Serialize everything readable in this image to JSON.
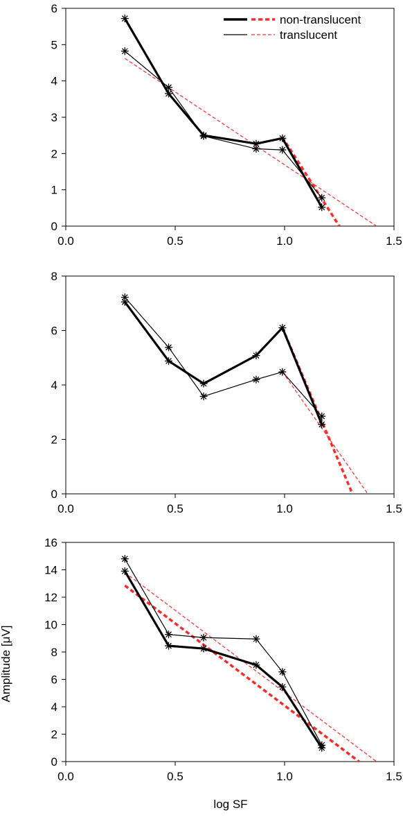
{
  "legend": {
    "position": "top-right",
    "entries": [
      {
        "label": "non-translucent",
        "black_style": "thick-solid",
        "red_style": "thick-dashed"
      },
      {
        "label": "translucent",
        "black_style": "thin-solid",
        "red_style": "thin-dashed"
      }
    ]
  },
  "colors": {
    "data_line": "#000000",
    "fit_line": "#ff2a2a",
    "axis": "#000000"
  },
  "chart_data": [
    {
      "type": "line",
      "title": "",
      "xlabel": "",
      "ylabel": "",
      "xlim": [
        0.0,
        1.5
      ],
      "ylim": [
        0,
        6
      ],
      "x_ticks": [
        "0.0",
        "0.5",
        "1.0",
        "1.5"
      ],
      "y_ticks": [
        "0",
        "1",
        "2",
        "3",
        "4",
        "5",
        "6"
      ],
      "grid": false,
      "x": [
        0.27,
        0.47,
        0.63,
        0.87,
        0.99,
        1.17
      ],
      "series": [
        {
          "name": "non-translucent",
          "values": [
            5.72,
            3.65,
            2.5,
            2.27,
            2.42,
            0.52
          ]
        },
        {
          "name": "translucent",
          "values": [
            4.82,
            3.82,
            2.48,
            2.13,
            2.1,
            0.78
          ]
        }
      ],
      "fits": [
        {
          "name": "non-translucent",
          "x": [
            0.99,
            1.25
          ],
          "y": [
            2.45,
            0.0
          ]
        },
        {
          "name": "translucent",
          "x": [
            0.27,
            1.42
          ],
          "y": [
            4.62,
            0.0
          ]
        }
      ]
    },
    {
      "type": "line",
      "title": "",
      "xlabel": "",
      "ylabel": "",
      "xlim": [
        0.0,
        1.5
      ],
      "ylim": [
        0,
        8
      ],
      "x_ticks": [
        "0.0",
        "0.5",
        "1.0",
        "1.5"
      ],
      "y_ticks": [
        "0",
        "2",
        "4",
        "6",
        "8"
      ],
      "grid": false,
      "x": [
        0.27,
        0.47,
        0.63,
        0.87,
        0.99,
        1.17
      ],
      "series": [
        {
          "name": "non-translucent",
          "values": [
            7.05,
            4.88,
            4.05,
            5.08,
            6.1,
            2.55
          ]
        },
        {
          "name": "translucent",
          "values": [
            7.22,
            5.38,
            3.58,
            4.2,
            4.48,
            2.85
          ]
        }
      ],
      "fits": [
        {
          "name": "non-translucent",
          "x": [
            0.99,
            1.31
          ],
          "y": [
            6.1,
            0.0
          ]
        },
        {
          "name": "translucent",
          "x": [
            0.99,
            1.38
          ],
          "y": [
            4.48,
            0.0
          ]
        }
      ]
    },
    {
      "type": "line",
      "title": "",
      "xlabel": "log SF",
      "ylabel": "Amplitude [μV]",
      "xlim": [
        0.0,
        1.5
      ],
      "ylim": [
        0,
        16
      ],
      "x_ticks": [
        "0.0",
        "0.5",
        "1.0",
        "1.5"
      ],
      "y_ticks": [
        "0",
        "2",
        "4",
        "6",
        "8",
        "10",
        "12",
        "14",
        "16"
      ],
      "grid": false,
      "x": [
        0.27,
        0.47,
        0.63,
        0.87,
        0.99,
        1.17
      ],
      "series": [
        {
          "name": "non-translucent",
          "values": [
            13.9,
            8.45,
            8.25,
            7.05,
            5.45,
            1.0
          ]
        },
        {
          "name": "translucent",
          "values": [
            14.8,
            9.28,
            9.05,
            8.95,
            6.55,
            1.2
          ]
        }
      ],
      "fits": [
        {
          "name": "non-translucent",
          "x": [
            0.27,
            1.34
          ],
          "y": [
            12.85,
            0.0
          ]
        },
        {
          "name": "translucent",
          "x": [
            0.27,
            1.42
          ],
          "y": [
            13.8,
            0.0
          ]
        }
      ]
    }
  ]
}
